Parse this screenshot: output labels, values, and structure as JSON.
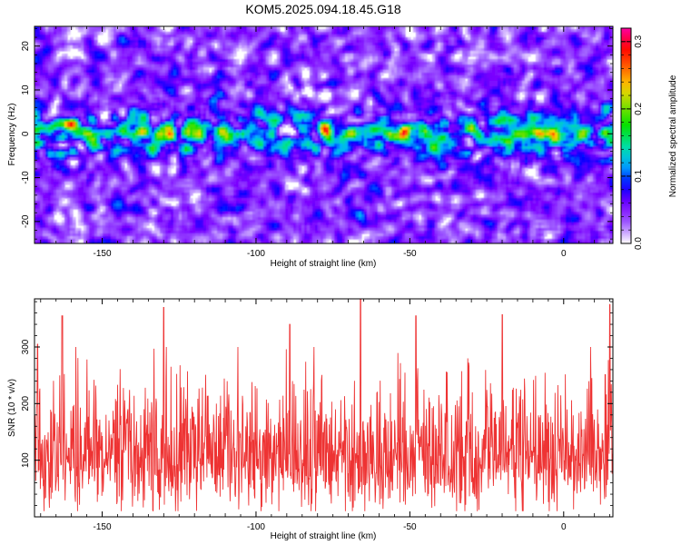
{
  "title": "KOM5.2025.094.18.45.G18",
  "colors": {
    "snr_line": "#ee3333",
    "colormap": [
      "#ffffff",
      "#a060ff",
      "#7a00ff",
      "#0000ff",
      "#00b0ff",
      "#00e0a0",
      "#00e000",
      "#80e000",
      "#ffd000",
      "#ff6000",
      "#ff0000",
      "#ff00a0"
    ]
  },
  "chart_data": [
    {
      "type": "heatmap",
      "xlabel": "Height of straight line (km)",
      "ylabel": "Frequency (Hz)",
      "xlim": [
        -172,
        16
      ],
      "ylim": [
        -25,
        24.5
      ],
      "xticks": [
        -150,
        -100,
        -50,
        0
      ],
      "yticks": [
        -20,
        -10,
        0,
        10,
        20
      ],
      "xtick_labels": [
        "-150",
        "-100",
        "-50",
        "0"
      ],
      "ytick_labels": [
        "-20",
        "-10",
        "0",
        "10",
        "20"
      ],
      "colorbar": {
        "label": "Normalized spectral amplitude",
        "range": [
          0,
          0.32
        ],
        "ticks": [
          0.0,
          0.1,
          0.2,
          0.3
        ],
        "tick_labels": [
          "0.0",
          "0.1",
          "0.2",
          "0.3"
        ]
      },
      "band": {
        "center_hz": 0,
        "half_width_hz": 5,
        "peak_amplitude": 0.32,
        "peak_spots": [
          {
            "x": -160,
            "y": 2.5,
            "v": 0.24
          },
          {
            "x": -130,
            "y": -0.5,
            "v": 0.22
          },
          {
            "x": -110,
            "y": 0,
            "v": 0.23
          },
          {
            "x": -77,
            "y": 0.5,
            "v": 0.31
          },
          {
            "x": -52,
            "y": 0.5,
            "v": 0.31
          },
          {
            "x": -42,
            "y": -2.5,
            "v": 0.2
          },
          {
            "x": -20,
            "y": -1.5,
            "v": 0.23
          },
          {
            "x": -5,
            "y": 0,
            "v": 0.22
          }
        ]
      }
    },
    {
      "type": "line",
      "xlabel": "Height of straight line (km)",
      "ylabel": "SNR (10 * v/v)",
      "xlim": [
        -172,
        16
      ],
      "ylim": [
        0,
        385
      ],
      "xticks": [
        -150,
        -100,
        -50,
        0
      ],
      "yticks": [
        100,
        200,
        300
      ],
      "xtick_labels": [
        "-150",
        "-100",
        "-50",
        "0"
      ],
      "ytick_labels": [
        "100",
        "200",
        "300"
      ],
      "series": [
        {
          "baseline": 100,
          "typical_range": [
            20,
            230
          ],
          "peaks": [
            {
              "x": -171,
              "y": 305
            },
            {
              "x": -163,
              "y": 355
            },
            {
              "x": -130,
              "y": 370
            },
            {
              "x": -89,
              "y": 340
            },
            {
              "x": -66,
              "y": 385
            },
            {
              "x": -48,
              "y": 355
            },
            {
              "x": -20,
              "y": 357
            },
            {
              "x": 15,
              "y": 375
            }
          ]
        }
      ]
    }
  ]
}
